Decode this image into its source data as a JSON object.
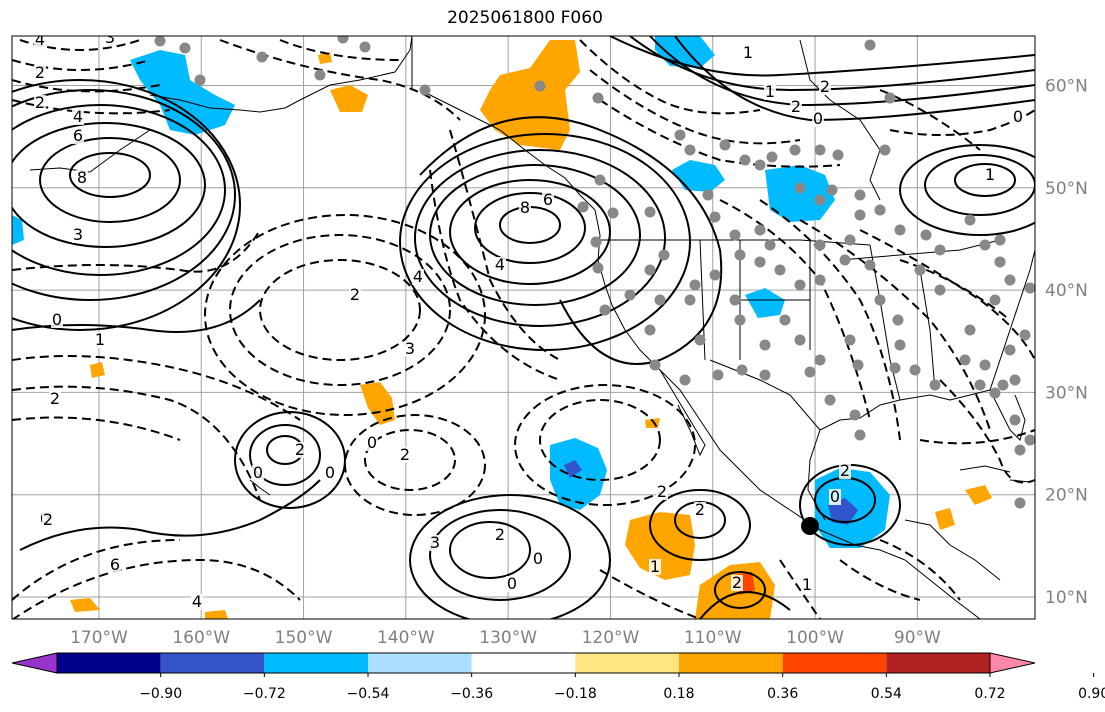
{
  "title": "2025061800 F060",
  "lat_ticks": [
    {
      "label": "60°N",
      "value": 60
    },
    {
      "label": "50°N",
      "value": 50
    },
    {
      "label": "40°N",
      "value": 40
    },
    {
      "label": "30°N",
      "value": 30
    },
    {
      "label": "20°N",
      "value": 20
    },
    {
      "label": "10°N",
      "value": 10
    }
  ],
  "lon_ticks": [
    {
      "label": "170°W",
      "value": -170
    },
    {
      "label": "160°W",
      "value": -160
    },
    {
      "label": "150°W",
      "value": -150
    },
    {
      "label": "140°W",
      "value": -140
    },
    {
      "label": "130°W",
      "value": -130
    },
    {
      "label": "120°W",
      "value": -120
    },
    {
      "label": "110°W",
      "value": -110
    },
    {
      "label": "100°W",
      "value": -100
    },
    {
      "label": "90°W",
      "value": -90
    }
  ],
  "colorbar": {
    "ticks": [
      "−0.90",
      "−0.72",
      "−0.54",
      "−0.36",
      "−0.18",
      "0.18",
      "0.36",
      "0.54",
      "0.72",
      "0.90"
    ],
    "colors": [
      "#9933cc",
      "#000088",
      "#3355cc",
      "#00bbff",
      "#aadfff",
      "#ffffff",
      "#ffe680",
      "#ffa500",
      "#ff4400",
      "#b22222",
      "#ff88aa"
    ]
  },
  "contour_labels": [
    "4",
    "3",
    "2",
    "2",
    "4",
    "6",
    "8",
    "3",
    "0",
    "1",
    "2",
    "0",
    "8",
    "6",
    "4",
    "4",
    "2",
    "3",
    "2",
    "2",
    "0",
    "0",
    "0",
    "2",
    "6",
    "4",
    "3",
    "2",
    "0",
    "0",
    "2",
    "2",
    "1",
    "2",
    "1",
    "2",
    "0",
    "0",
    "1",
    "1",
    "2",
    "0",
    "1",
    "2"
  ],
  "marker": {
    "symbol": "black-dot",
    "lon": -102.5,
    "lat": 17.0
  }
}
